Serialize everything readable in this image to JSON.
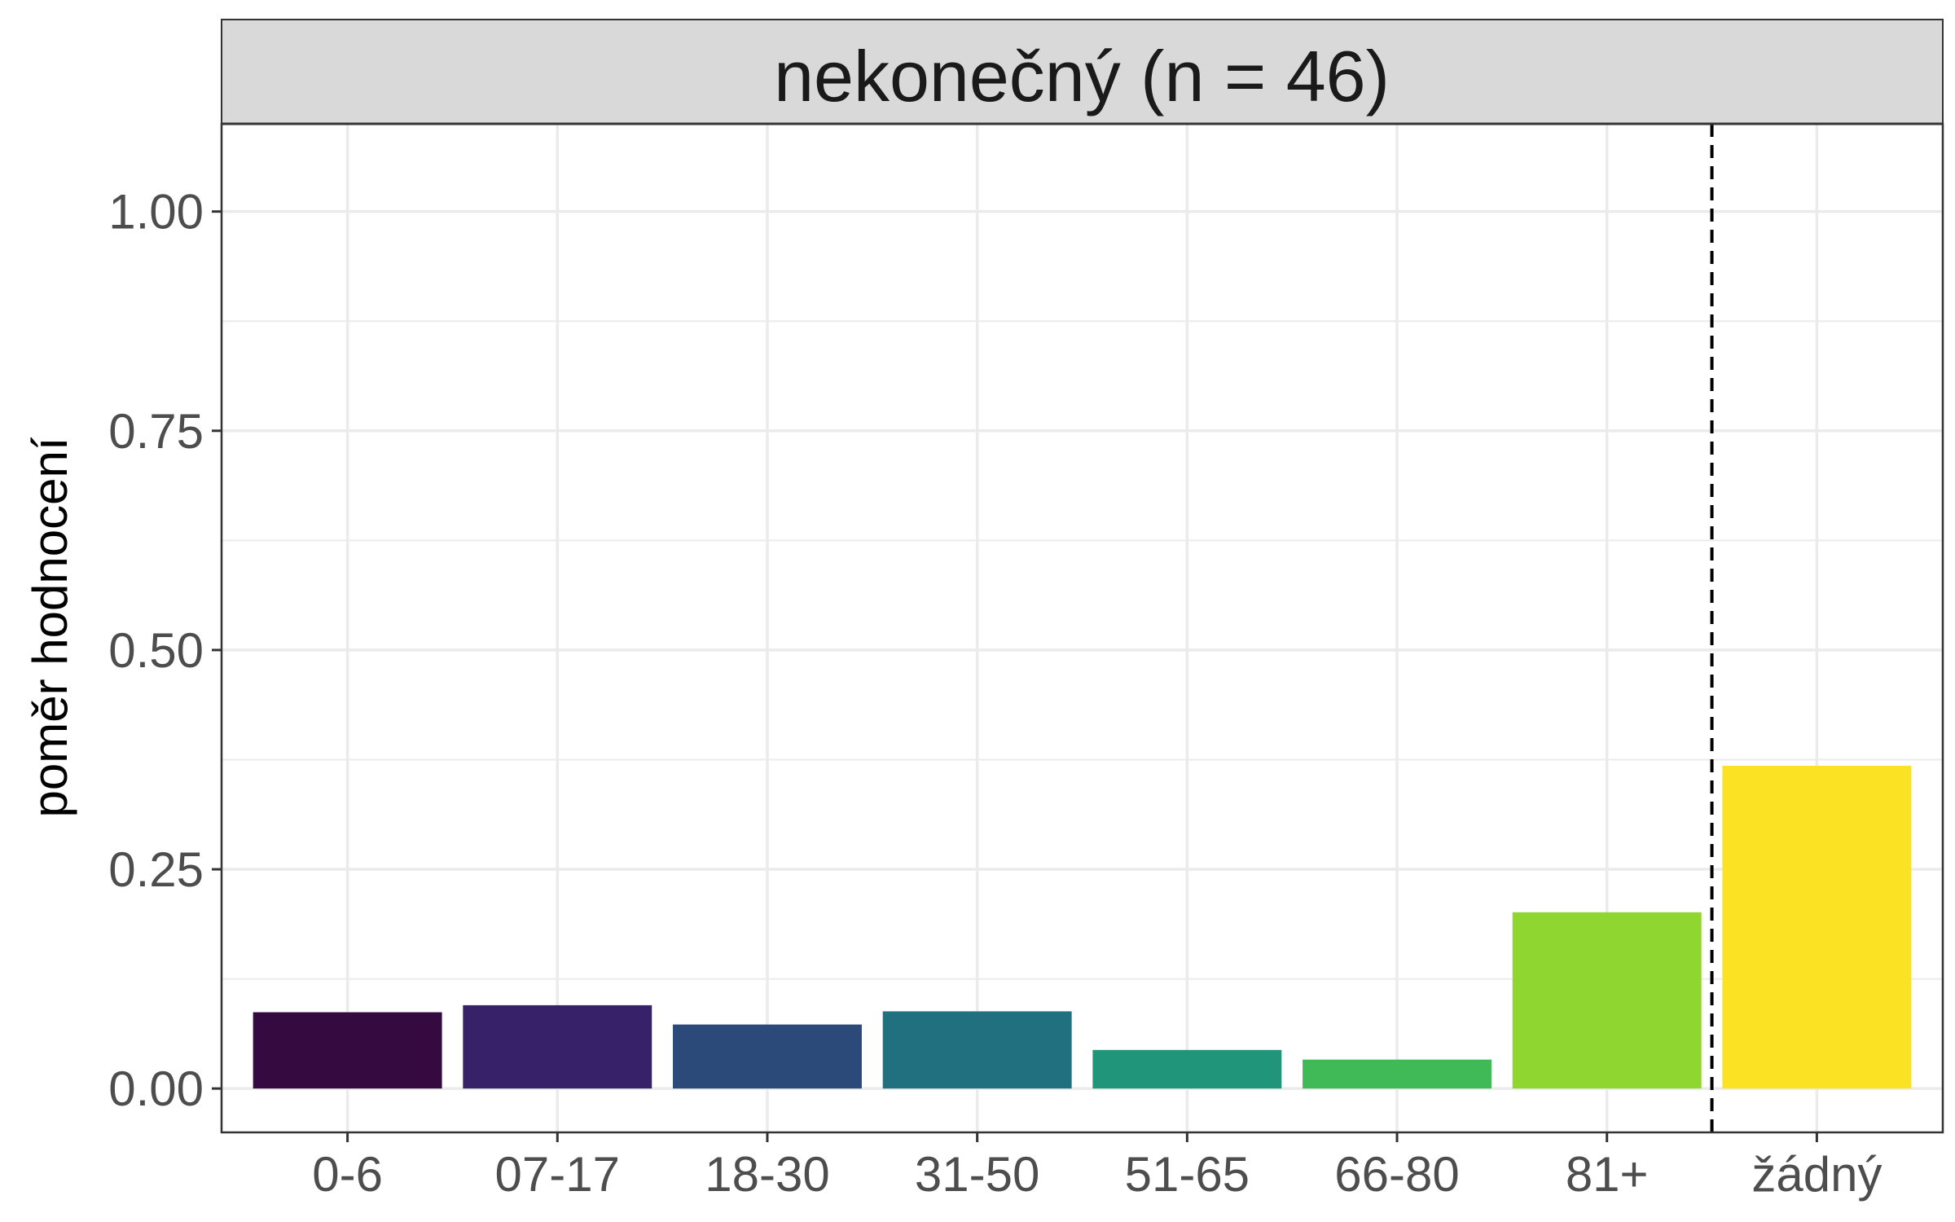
{
  "chart_data": {
    "type": "bar",
    "panel_title": "nekonečný (n = 46)",
    "ylabel": "poměr hodnocení",
    "xlabel": "",
    "categories": [
      "0-6",
      "07-17",
      "18-30",
      "31-50",
      "51-65",
      "66-80",
      "81+",
      "žádný"
    ],
    "values": [
      0.087,
      0.095,
      0.073,
      0.088,
      0.044,
      0.033,
      0.201,
      0.368
    ],
    "colors": [
      "#350a40",
      "#37226a",
      "#2b4a7a",
      "#21707f",
      "#21957a",
      "#3fba56",
      "#8fd631",
      "#fbe222"
    ],
    "ylim": [
      -0.05,
      1.1
    ],
    "y_ticks": [
      "0.00",
      "0.25",
      "0.50",
      "0.75",
      "1.00"
    ],
    "y_tick_values": [
      0,
      0.25,
      0.5,
      0.75,
      1.0
    ],
    "grid": true,
    "reference_line": {
      "style": "dashed",
      "between_categories": [
        "81+",
        "žádný"
      ]
    }
  }
}
